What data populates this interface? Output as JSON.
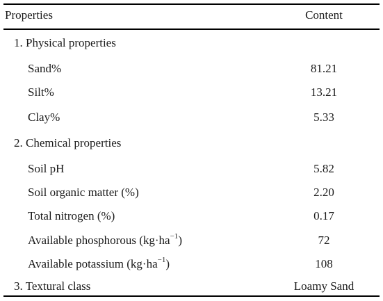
{
  "header": {
    "properties": "Properties",
    "content": "Content"
  },
  "rows": [
    {
      "label": "1. Physical properties",
      "value": ""
    },
    {
      "label": "Sand%",
      "value": "81.21"
    },
    {
      "label": "Silt%",
      "value": "13.21"
    },
    {
      "label": "Clay%",
      "value": "5.33"
    },
    {
      "label": "2. Chemical properties",
      "value": ""
    },
    {
      "label": "Soil pH",
      "value": "5.82"
    },
    {
      "label": "Soil organic matter (%)",
      "value": "2.20"
    },
    {
      "label": "Total nitrogen (%)",
      "value": "0.17"
    },
    {
      "label": "Available phosphorous (kg·ha",
      "sup": "−1",
      "label_suffix": ")",
      "value": "72"
    },
    {
      "label": "Available potassium (kg·ha",
      "sup": "−1",
      "label_suffix": ")",
      "value": "108"
    },
    {
      "label": "3. Textural class",
      "value": "Loamy Sand"
    }
  ]
}
